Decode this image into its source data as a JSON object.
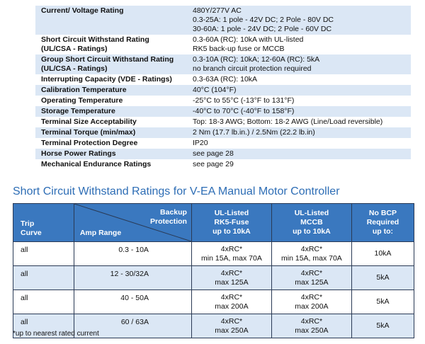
{
  "spec_table": {
    "rows": [
      [
        "Current/ Voltage Rating",
        [
          "480Y/277V AC",
          "0.3-25A: 1 pole - 42V DC; 2 Pole - 80V DC",
          "30-60A: 1 pole - 24V DC; 2 Pole - 60V DC"
        ]
      ],
      [
        [
          "Short Circuit Withstand Rating",
          "(UL/CSA - Ratings)"
        ],
        [
          "0.3-60A (RC): 10kA with UL-listed",
          "RK5 back-up fuse or MCCB"
        ]
      ],
      [
        [
          "Group Short Circuit Withstand Rating",
          "(UL/CSA - Ratings)"
        ],
        [
          "0.3-10A (RC): 10kA; 12-60A (RC): 5kA",
          "no branch circuit protection required"
        ]
      ],
      [
        "Interrupting Capacity (VDE - Ratings)",
        "0.3-63A (RC): 10kA"
      ],
      [
        "Calibration Temperature",
        "40°C (104°F)"
      ],
      [
        "Operating Temperature",
        "-25°C to 55°C (-13°F to 131°F)"
      ],
      [
        "Storage Temperature",
        "-40°C to 70°C (-40°F to 158°F)"
      ],
      [
        "Terminal Size Acceptability",
        "Top: 18-3 AWG; Bottom: 18-2 AWG (Line/Load reversible)"
      ],
      [
        "Terminal Torque (min/max)",
        "2 Nm (17.7 lb.in.) / 2.5Nm (22.2 lb.in)"
      ],
      [
        "Terminal Protection Degree",
        "IP20"
      ],
      [
        "Horse Power Ratings",
        "see page 28"
      ],
      [
        "Mechanical Endurance Ratings",
        "see page 29"
      ]
    ]
  },
  "ratings": {
    "title": "Short Circuit Withstand Ratings for V-EA Manual Motor Controller",
    "header": {
      "trip_curve": [
        "Trip",
        "Curve"
      ],
      "backup_protection": [
        "Backup",
        "Protection"
      ],
      "amp_range": "Amp Range",
      "columns": [
        [
          "UL-Listed",
          "RK5-Fuse",
          "up to 10kA"
        ],
        [
          "UL-Listed",
          "MCCB",
          "up to 10kA"
        ],
        [
          "No BCP",
          "Required",
          "up to:"
        ]
      ]
    },
    "rows": [
      [
        "all",
        "0.3 - 10A",
        [
          "4xRC*",
          "min 15A, max 70A"
        ],
        [
          "4xRC*",
          "min 15A, max 70A"
        ],
        "10kA"
      ],
      [
        "all",
        "12 - 30/32A",
        [
          "4xRC*",
          "max 125A"
        ],
        [
          "4xRC*",
          "max 125A"
        ],
        "5kA"
      ],
      [
        "all",
        "40 - 50A",
        [
          "4xRC*",
          "max 200A"
        ],
        [
          "4xRC*",
          "max 200A"
        ],
        "5kA"
      ],
      [
        "all",
        "60 / 63A",
        [
          "4xRC*",
          "max 250A"
        ],
        [
          "4xRC*",
          "max 250A"
        ],
        "5kA"
      ]
    ],
    "footnote": "*up to nearest rated current"
  }
}
